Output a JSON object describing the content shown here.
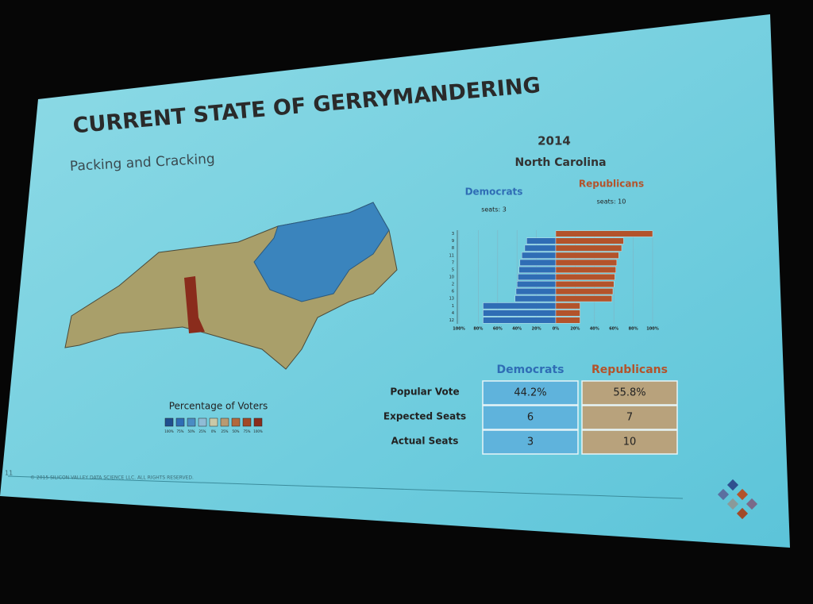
{
  "title": "CURRENT STATE OF GERRYMANDERING",
  "subtitle": "Packing and Cracking",
  "chart_data": {
    "type": "bar",
    "title": "2014",
    "subtitle": "North Carolina",
    "categories": [
      "3",
      "9",
      "8",
      "11",
      "7",
      "5",
      "10",
      "2",
      "6",
      "13",
      "1",
      "4",
      "12"
    ],
    "series": [
      {
        "name": "Democrats",
        "label": "seats: 3",
        "color": "#2f6db5",
        "values": [
          0,
          30,
          32,
          35,
          37,
          38,
          39,
          40,
          41,
          42,
          75,
          75,
          75
        ]
      },
      {
        "name": "Republicans",
        "label": "seats: 10",
        "color": "#b3532b",
        "values": [
          100,
          70,
          68,
          65,
          63,
          62,
          61,
          60,
          59,
          58,
          25,
          25,
          25
        ]
      }
    ],
    "xlim": [
      -100,
      100
    ],
    "xticks": [
      {
        "value": -100,
        "label": "100%"
      },
      {
        "value": -80,
        "label": "80%"
      },
      {
        "value": -60,
        "label": "60%"
      },
      {
        "value": -40,
        "label": "40%"
      },
      {
        "value": -20,
        "label": "20%"
      },
      {
        "value": 0,
        "label": "0%"
      },
      {
        "value": 20,
        "label": "20%"
      },
      {
        "value": 40,
        "label": "40%"
      },
      {
        "value": 60,
        "label": "60%"
      },
      {
        "value": 80,
        "label": "80%"
      },
      {
        "value": 100,
        "label": "100%"
      }
    ],
    "grid": true
  },
  "map_legend": {
    "title": "Percentage of Voters",
    "labels": [
      "100%",
      "75%",
      "50%",
      "25%",
      "0%",
      "25%",
      "50%",
      "75%",
      "100%"
    ],
    "colors": [
      "#1f4f8f",
      "#2f6db5",
      "#4a8cc4",
      "#8fbcd6",
      "#c9c9a8",
      "#b89a72",
      "#b3683c",
      "#a24a28",
      "#8a2c1c"
    ]
  },
  "table": {
    "headers": [
      "Democrats",
      "Republicans"
    ],
    "rows": [
      [
        "Popular Vote",
        "44.2%",
        "55.8%"
      ],
      [
        "Expected Seats",
        "6",
        "7"
      ],
      [
        "Actual Seats",
        "3",
        "10"
      ]
    ]
  },
  "footer": {
    "page": "11",
    "copyright": "© 2015 SILICON VALLEY DATA SCIENCE LLC. ALL RIGHTS RESERVED."
  }
}
